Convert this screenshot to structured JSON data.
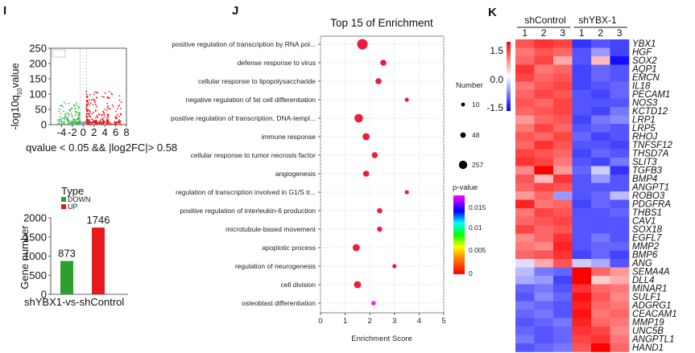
{
  "panels": {
    "I": "I",
    "J": "J",
    "K": "K"
  },
  "chart_data": [
    {
      "panel": "I-volcano",
      "type": "scatter",
      "xlim": [
        -6,
        8
      ],
      "ylim": [
        0,
        250
      ],
      "xticks": [
        "-4",
        "-2",
        "0",
        "2",
        "4",
        "6",
        "8"
      ],
      "yticks": [
        "0",
        "50",
        "100",
        "150",
        "200",
        "250"
      ],
      "ylabel": "-log10q value",
      "ylabel_main": "-log10q",
      "ylabel_sub": "10",
      "ylabel_suffix": "value",
      "caption": "qvalue < 0.05 && |log2FC|> 0.58",
      "thresholds_x": [
        -0.58,
        0.58
      ],
      "colors": {
        "down": "#3cb44b",
        "up": "#e41a1c",
        "ns": "#999999"
      }
    },
    {
      "panel": "I-bar",
      "type": "bar",
      "legend_title": "Type",
      "legend": [
        {
          "label": "DOWN",
          "color": "#2ca02c"
        },
        {
          "label": "UP",
          "color": "#e41a1c"
        }
      ],
      "categories": [
        "shYBX1-vs-shControl"
      ],
      "series": [
        {
          "name": "DOWN",
          "values": [
            873
          ],
          "color": "#2ca02c"
        },
        {
          "name": "UP",
          "values": [
            1746
          ],
          "color": "#e41a1c"
        }
      ],
      "value_labels": [
        "873",
        "1746"
      ],
      "ylabel": "Gene number",
      "ylim": [
        0,
        2000
      ],
      "yticks": [
        "0",
        "500",
        "1000",
        "1500",
        "2000"
      ]
    },
    {
      "panel": "J",
      "type": "scatter",
      "title": "Top 15 of Enrichment",
      "xlabel": "Enrichment Score",
      "xlim": [
        0,
        5
      ],
      "xticks": [
        "0",
        "1",
        "2",
        "3",
        "4",
        "5"
      ],
      "grid": true,
      "categories": [
        "positive regulation of transcription by RNA pol...",
        "defense response to virus",
        "cellular response to lipopolysaccharide",
        "negative regulation of fat cell differentiation",
        "positive regulation of transcription, DNA-templ...",
        "immune response",
        "cellular response to tumor necrosis factor",
        "angiogenesis",
        "regulation of transcription involved in G1/S tr...",
        "positive regulation of interleukin-6 production",
        "microtubule-based movement",
        "apoptotic process",
        "regulation of neurogenesis",
        "cell division",
        "osteoblast differentiation"
      ],
      "x": [
        1.7,
        2.55,
        2.35,
        3.5,
        1.55,
        1.85,
        2.2,
        1.85,
        3.5,
        2.4,
        2.4,
        1.45,
        3.0,
        1.5,
        2.15
      ],
      "number": [
        257,
        48,
        48,
        10,
        120,
        60,
        40,
        48,
        10,
        30,
        30,
        80,
        10,
        60,
        20
      ],
      "pvalue": [
        0.0,
        0.0,
        0.0,
        0.0,
        0.0,
        0.0,
        0.0,
        0.0,
        0.0,
        0.0,
        0.0,
        0.0,
        0.0,
        0.0,
        0.017
      ],
      "size_legend_title": "Number",
      "size_legend": [
        "10",
        "48",
        "257"
      ],
      "color_legend_title": "p-value",
      "color_legend_ticks": [
        "0.015",
        "0.01",
        "0.005",
        "0"
      ]
    },
    {
      "panel": "K",
      "type": "heatmap",
      "group_labels": [
        "shControl",
        "shYBX-1"
      ],
      "column_labels": [
        "1",
        "2",
        "3",
        "1",
        "2",
        "3"
      ],
      "scale_ticks": [
        "1.5",
        "0.0",
        "-1.5"
      ],
      "scale_range": [
        -1.5,
        1.5
      ],
      "genes": [
        "YBX1",
        "HGF",
        "SOX2",
        "AQP1",
        "EMCN",
        "IL18",
        "PECAM1",
        "NOS3",
        "KCTD12",
        "LRP1",
        "LRP5",
        "RHOJ",
        "TNFSF12",
        "THSD7A",
        "SLIT3",
        "TGFB3",
        "BMP4",
        "ANGPT1",
        "ROBO3",
        "PDGFRA",
        "THBS1",
        "CAV1",
        "SOX18",
        "EGFL7",
        "MMP2",
        "BMP6",
        "ANG",
        "SEMA4A",
        "DLL4",
        "MINAR1",
        "SULF1",
        "ADGRG1",
        "CEACAM1",
        "MMP19",
        "UNC5B",
        "ANGPTL1",
        "HAND1"
      ],
      "values": [
        [
          1.0,
          1.2,
          1.1,
          -1.2,
          -1.0,
          -1.1
        ],
        [
          0.8,
          1.0,
          0.9,
          -1.0,
          -0.6,
          -1.1
        ],
        [
          0.9,
          1.1,
          0.5,
          -1.0,
          0.4,
          -1.4
        ],
        [
          1.2,
          0.8,
          0.9,
          -1.1,
          -0.9,
          -1.0
        ],
        [
          1.1,
          0.9,
          1.0,
          -1.1,
          -0.9,
          -1.0
        ],
        [
          0.8,
          1.0,
          1.1,
          -1.1,
          -1.0,
          -0.9
        ],
        [
          0.9,
          1.1,
          1.0,
          -1.0,
          -1.1,
          -0.9
        ],
        [
          1.0,
          0.9,
          1.1,
          -1.0,
          -1.0,
          -1.0
        ],
        [
          0.9,
          1.0,
          1.1,
          -1.0,
          -1.1,
          -0.8
        ],
        [
          0.6,
          0.9,
          1.0,
          -1.1,
          -0.8,
          -0.7
        ],
        [
          0.8,
          1.1,
          0.9,
          -1.0,
          -0.9,
          -1.0
        ],
        [
          1.0,
          0.9,
          1.1,
          -0.9,
          -1.1,
          -1.0
        ],
        [
          0.9,
          1.2,
          1.0,
          -1.0,
          -1.0,
          -1.1
        ],
        [
          1.1,
          1.0,
          0.9,
          -1.1,
          -0.9,
          -1.0
        ],
        [
          1.2,
          1.1,
          0.8,
          -1.0,
          -1.1,
          -0.8
        ],
        [
          0.7,
          1.5,
          0.6,
          -0.9,
          -0.3,
          -1.2
        ],
        [
          1.0,
          0.4,
          1.2,
          -1.0,
          -0.6,
          -1.0
        ],
        [
          0.9,
          1.1,
          1.0,
          -1.0,
          -1.0,
          -1.0
        ],
        [
          0.6,
          0.9,
          -0.6,
          -1.0,
          -0.9,
          -0.4
        ],
        [
          1.3,
          0.8,
          0.9,
          -1.1,
          -0.9,
          -1.0
        ],
        [
          0.8,
          1.1,
          1.0,
          -1.0,
          -1.0,
          -0.9
        ],
        [
          0.9,
          1.0,
          1.1,
          -1.0,
          -1.0,
          -1.0
        ],
        [
          1.1,
          0.9,
          1.0,
          -1.0,
          -1.0,
          -1.0
        ],
        [
          0.7,
          0.9,
          1.2,
          -1.0,
          -0.8,
          -1.0
        ],
        [
          0.8,
          0.7,
          1.3,
          -1.0,
          -0.9,
          -0.9
        ],
        [
          0.9,
          1.0,
          1.2,
          -1.1,
          -0.9,
          -1.1
        ],
        [
          -0.2,
          0.5,
          1.0,
          -0.3,
          -0.5,
          -1.0
        ],
        [
          -0.4,
          -0.8,
          -0.9,
          1.5,
          0.9,
          0.6
        ],
        [
          -0.5,
          -0.6,
          -1.1,
          1.5,
          0.3,
          0.5
        ],
        [
          -0.9,
          -0.8,
          -1.0,
          1.2,
          0.9,
          0.8
        ],
        [
          -1.0,
          -0.7,
          -0.9,
          1.4,
          1.0,
          0.7
        ],
        [
          -0.8,
          -0.9,
          -1.0,
          1.3,
          0.9,
          0.8
        ],
        [
          -0.9,
          -0.8,
          -1.0,
          1.4,
          0.8,
          0.9
        ],
        [
          -1.0,
          -0.9,
          -0.8,
          1.3,
          0.9,
          0.8
        ],
        [
          -0.9,
          -1.0,
          -0.9,
          1.2,
          1.1,
          0.7
        ],
        [
          -0.8,
          -1.0,
          -0.9,
          1.1,
          1.2,
          0.8
        ],
        [
          -1.0,
          -0.9,
          -0.8,
          1.0,
          1.5,
          0.9
        ]
      ]
    }
  ]
}
